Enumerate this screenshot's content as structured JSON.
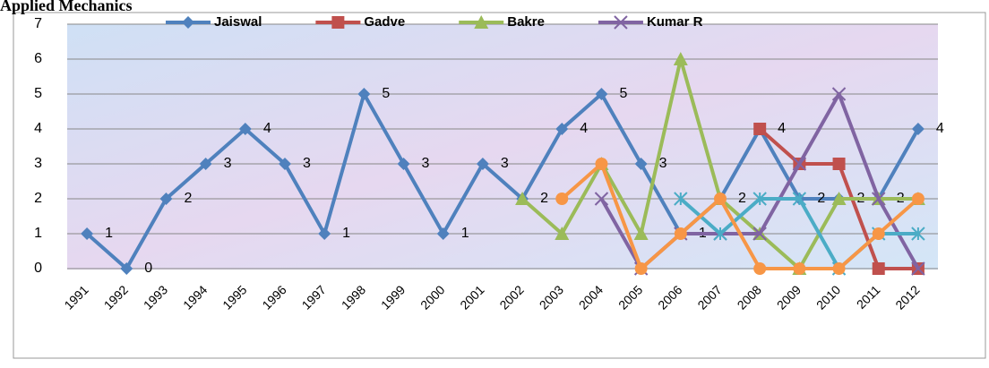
{
  "chart_data": {
    "type": "line",
    "title": "Applied Mechanics",
    "categories": [
      "1991",
      "1992",
      "1993",
      "1994",
      "1995",
      "1996",
      "1997",
      "1998",
      "1999",
      "2000",
      "2001",
      "2002",
      "2003",
      "2004",
      "2005",
      "2006",
      "2007",
      "2008",
      "2009",
      "2010",
      "2011",
      "2012"
    ],
    "ylim": [
      0,
      7
    ],
    "yticks": [
      0,
      1,
      2,
      3,
      4,
      5,
      6,
      7
    ],
    "grid": true,
    "legend": "top",
    "series": [
      {
        "name": "Jaiswal",
        "color": "#4f81bd",
        "marker": "diamond",
        "data_labels": true,
        "values": [
          1,
          0,
          2,
          3,
          4,
          3,
          1,
          5,
          3,
          1,
          3,
          2,
          4,
          5,
          3,
          1,
          2,
          4,
          2,
          2,
          2,
          4
        ]
      },
      {
        "name": "Gadve",
        "color": "#c0504d",
        "marker": "square",
        "values": [
          null,
          null,
          null,
          null,
          null,
          null,
          null,
          null,
          null,
          null,
          null,
          null,
          null,
          null,
          null,
          null,
          null,
          4,
          3,
          3,
          0,
          0
        ]
      },
      {
        "name": "Bakre",
        "color": "#9bbb59",
        "marker": "triangle",
        "values": [
          null,
          null,
          null,
          null,
          null,
          null,
          null,
          null,
          null,
          null,
          null,
          2,
          1,
          3,
          1,
          6,
          2,
          1,
          0,
          2,
          2,
          2
        ]
      },
      {
        "name": "Kumar R",
        "color": "#8064a2",
        "marker": "x",
        "values": [
          null,
          null,
          null,
          null,
          null,
          null,
          null,
          null,
          null,
          null,
          null,
          null,
          null,
          2,
          0,
          1,
          1,
          1,
          3,
          5,
          2,
          0
        ]
      },
      {
        "color": "#4bacc6",
        "marker": "star",
        "values": [
          null,
          null,
          null,
          null,
          null,
          null,
          null,
          null,
          null,
          null,
          null,
          null,
          null,
          null,
          null,
          2,
          1,
          2,
          2,
          0,
          1,
          1
        ]
      },
      {
        "color": "#f79646",
        "marker": "circle",
        "values": [
          null,
          null,
          null,
          null,
          null,
          null,
          null,
          null,
          null,
          null,
          null,
          null,
          2,
          3,
          0,
          1,
          2,
          0,
          0,
          0,
          1,
          2
        ]
      }
    ]
  }
}
